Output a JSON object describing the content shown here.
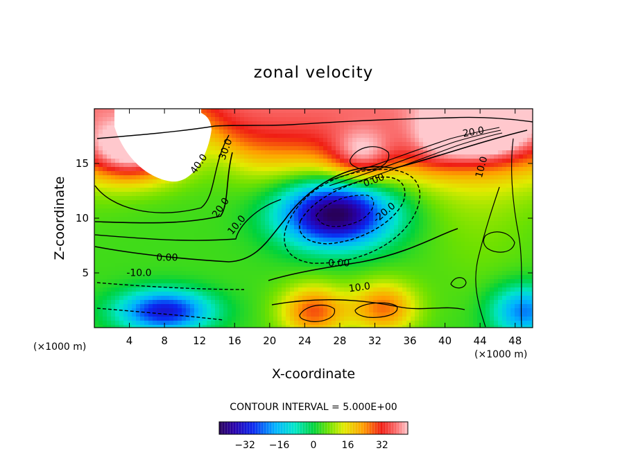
{
  "chart_data": {
    "type": "heatmap",
    "subtype": "filled-contour",
    "title": "zonal velocity",
    "xlabel": "X-coordinate",
    "ylabel": "Z-coordinate",
    "x_unit_left": "(×1000 m)",
    "x_unit_right": "(×1000 m)",
    "xlim": [
      0,
      50
    ],
    "ylim": [
      0,
      20
    ],
    "xticks": [
      4,
      8,
      12,
      16,
      20,
      24,
      28,
      32,
      36,
      40,
      44,
      48
    ],
    "yticks": [
      5,
      10,
      15
    ],
    "contour_interval_text": "CONTOUR INTERVAL = 5.000E+00",
    "colorbar": {
      "min": -44,
      "max": 44,
      "ticks": [
        -32,
        -16,
        0,
        16,
        32
      ],
      "tick_labels": [
        "−32",
        "−16",
        "0",
        "16",
        "32"
      ]
    },
    "contour_labels": [
      {
        "text": "40.0",
        "x": 12.2,
        "y": 14.8,
        "angle": -55
      },
      {
        "text": "30.0",
        "x": 15.3,
        "y": 16.2,
        "angle": -70
      },
      {
        "text": "20.0",
        "x": 14.7,
        "y": 10.8,
        "angle": -55
      },
      {
        "text": "10.0",
        "x": 16.5,
        "y": 9.2,
        "angle": -50
      },
      {
        "text": "0.00",
        "x": 8.3,
        "y": 6.1,
        "angle": 0
      },
      {
        "text": "-10.0",
        "x": 5.1,
        "y": 4.7,
        "angle": 0
      },
      {
        "text": "0.00",
        "x": 27.9,
        "y": 5.6,
        "angle": 0
      },
      {
        "text": "10.0",
        "x": 30.3,
        "y": 3.4,
        "angle": -8
      },
      {
        "text": "-20.0",
        "x": 33.3,
        "y": 10.3,
        "angle": -40
      },
      {
        "text": "0.00",
        "x": 32.0,
        "y": 13.2,
        "angle": -20
      },
      {
        "text": "20.0",
        "x": 43.3,
        "y": 17.6,
        "angle": -10
      },
      {
        "text": "10.0",
        "x": 44.5,
        "y": 14.6,
        "angle": -75
      }
    ],
    "field_features": [
      {
        "name": "surface jet west",
        "value": 40,
        "x": 5,
        "y": 16
      },
      {
        "name": "surface band east",
        "value": 32,
        "x": 44,
        "y": 18
      },
      {
        "name": "core jet",
        "value": -44,
        "x": 27.5,
        "y": 10.4
      },
      {
        "name": "bottom jet west",
        "value": -30,
        "x": 8,
        "y": 1.5
      },
      {
        "name": "bottom blob",
        "value": 30,
        "x": 25,
        "y": 1.5
      },
      {
        "name": "bottom blob",
        "value": 28,
        "x": 33,
        "y": 1.8
      },
      {
        "name": "eastern lobe",
        "value": 6,
        "x": 44,
        "y": 8
      },
      {
        "name": "bottom east",
        "value": -20,
        "x": 49,
        "y": 1.5
      },
      {
        "name": "inner blob",
        "value": 26,
        "x": 30.5,
        "y": 15.6
      },
      {
        "name": "small blob",
        "value": 14,
        "x": 38.5,
        "y": 16
      }
    ]
  }
}
